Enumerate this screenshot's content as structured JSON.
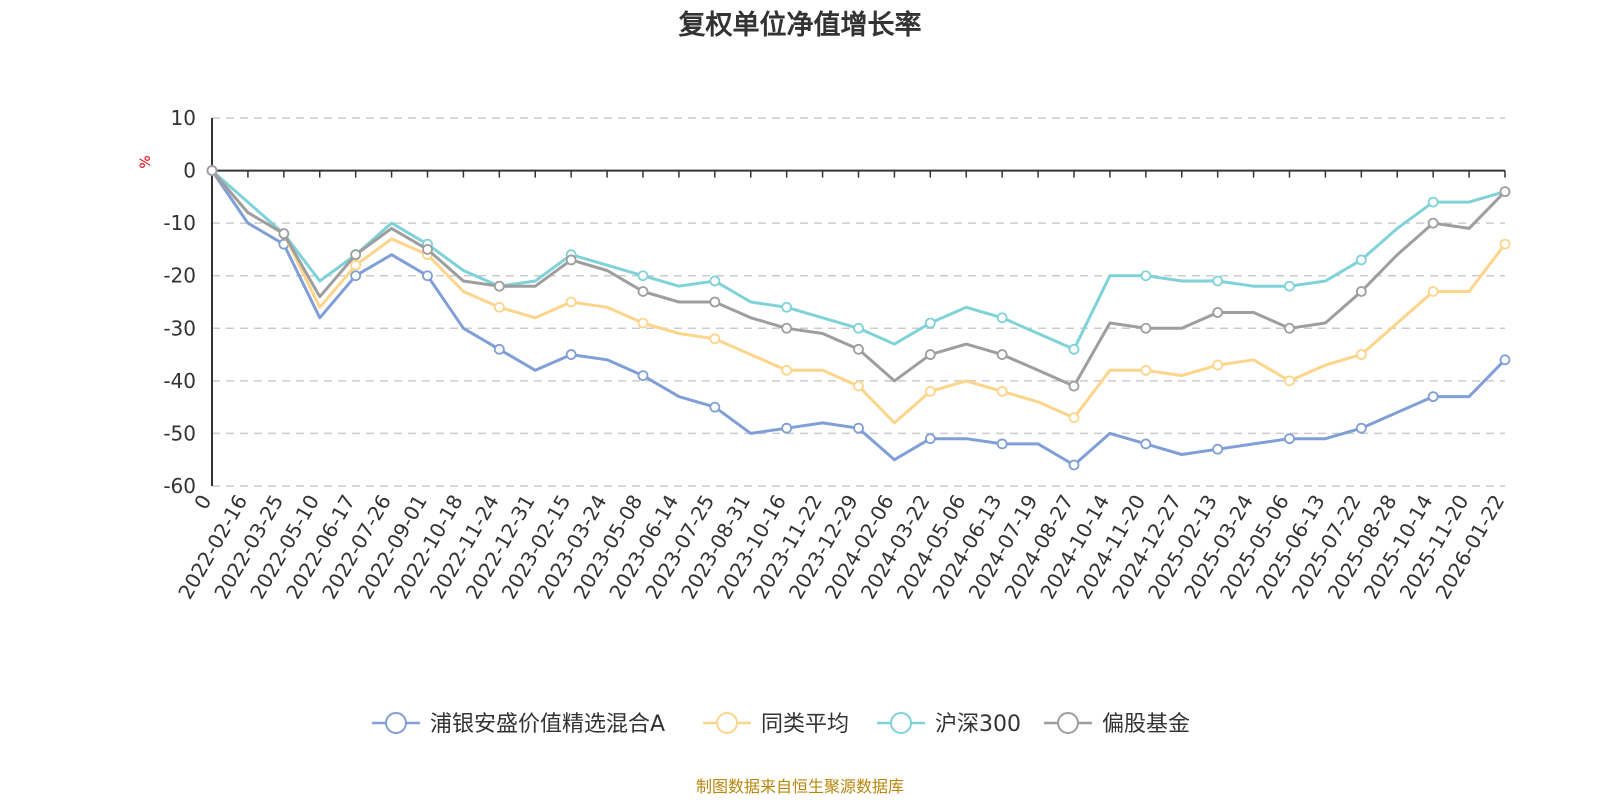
{
  "chart_data": {
    "type": "line",
    "title": "复权单位净值增长率",
    "ylabel": "%",
    "xlabel": "",
    "ylim": [
      -60,
      10
    ],
    "yticks": [
      10,
      0,
      -10,
      -20,
      -30,
      -40,
      -50,
      -60
    ],
    "categories": [
      "0",
      "2022-02-16",
      "2022-03-25",
      "2022-05-10",
      "2022-06-17",
      "2022-07-26",
      "2022-09-01",
      "2022-10-18",
      "2022-11-24",
      "2022-12-31",
      "2023-02-15",
      "2023-03-24",
      "2023-05-08",
      "2023-06-14",
      "2023-07-25",
      "2023-08-31",
      "2023-10-16",
      "2023-11-22",
      "2023-12-29",
      "2024-02-06",
      "2024-03-22",
      "2024-05-06",
      "2024-06-13",
      "2024-07-19",
      "2024-08-27",
      "2024-10-14",
      "2024-11-20",
      "2024-12-27",
      "2025-02-13",
      "2025-03-24",
      "2025-05-06",
      "2025-06-13",
      "2025-07-22",
      "2025-08-28",
      "2025-10-14",
      "2025-11-20",
      "2026-01-22"
    ],
    "series": [
      {
        "name": "浦银安盛价值精选混合A",
        "color": "#7f9fd6",
        "values": [
          0,
          -10,
          -14,
          -28,
          -20,
          -16,
          -20,
          -30,
          -34,
          -38,
          -35,
          -36,
          -39,
          -43,
          -45,
          -50,
          -49,
          -48,
          -49,
          -55,
          -51,
          -51,
          -52,
          -52,
          -56,
          -50,
          -52,
          -54,
          -53,
          -52,
          -51,
          -51,
          -49,
          -46,
          -43,
          -43,
          -36
        ]
      },
      {
        "name": "同类平均",
        "color": "#fdd58a",
        "values": [
          0,
          -8,
          -12,
          -26,
          -18,
          -13,
          -16,
          -23,
          -26,
          -28,
          -25,
          -26,
          -29,
          -31,
          -32,
          -35,
          -38,
          -38,
          -41,
          -48,
          -42,
          -40,
          -42,
          -44,
          -47,
          -38,
          -38,
          -39,
          -37,
          -36,
          -40,
          -37,
          -35,
          -29,
          -23,
          -23,
          -14
        ]
      },
      {
        "name": "沪深300",
        "color": "#7fd2d8",
        "values": [
          0,
          -6,
          -12,
          -21,
          -16,
          -10,
          -14,
          -19,
          -22,
          -21,
          -16,
          -18,
          -20,
          -22,
          -21,
          -25,
          -26,
          -28,
          -30,
          -33,
          -29,
          -26,
          -28,
          -31,
          -34,
          -20,
          -20,
          -21,
          -21,
          -22,
          -22,
          -21,
          -17,
          -11,
          -6,
          -6,
          -4
        ]
      },
      {
        "name": "偏股基金",
        "color": "#9e9e9e",
        "values": [
          0,
          -8,
          -12,
          -24,
          -16,
          -11,
          -15,
          -21,
          -22,
          -22,
          -17,
          -19,
          -23,
          -25,
          -25,
          -28,
          -30,
          -31,
          -34,
          -40,
          -35,
          -33,
          -35,
          -38,
          -41,
          -29,
          -30,
          -30,
          -27,
          -27,
          -30,
          -29,
          -23,
          -16,
          -10,
          -11,
          -4
        ]
      }
    ]
  },
  "source_note": "制图数据来自恒生聚源数据库"
}
